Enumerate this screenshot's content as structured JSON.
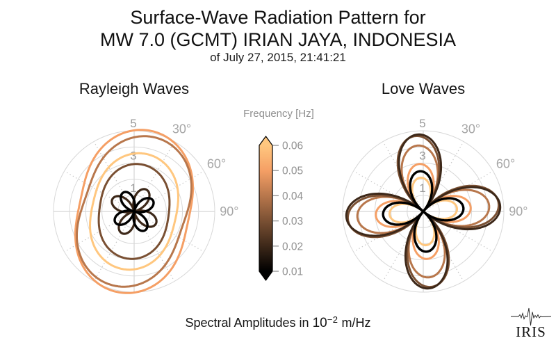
{
  "header": {
    "title_line1": "Surface-Wave Radiation Pattern for",
    "title_line2": "MW 7.0 (GCMT) IRIAN JAYA, INDONESIA",
    "subtitle": "of July 27, 2015, 21:41:21"
  },
  "colorbar": {
    "label": "Frequency [Hz]",
    "ticks": [
      "0.06",
      "0.05",
      "0.04",
      "0.03",
      "0.02",
      "0.01"
    ],
    "gradient_top_to_bottom": [
      "#FFC77F",
      "#F59F65",
      "#B8774C",
      "#7A5033",
      "#3D2819",
      "#000000"
    ],
    "outline_color": "#000000",
    "tick_color": "#8f8f8f",
    "tick_label_color": "#919191",
    "extend_arrows": "both"
  },
  "footer": {
    "caption_prefix": "Spectral Amplitudes in",
    "caption_base": "10",
    "caption_exponent": "−2",
    "caption_suffix": "m/Hz",
    "logo_text": "IRIS"
  },
  "grid_style": {
    "circle_color": "#d8d8d8",
    "axis_cross_color": "#cbcbcb",
    "dotted_spoke_color": "#c6c6c6",
    "r_label_color": "#9a9a9a",
    "theta_label_color": "#a6a6a6"
  },
  "chart_data": [
    {
      "type": "line",
      "projection": "polar",
      "title": "Rayleigh Waves",
      "units": "10^-2 m/Hz",
      "r_axis": {
        "ticks": [
          1,
          3,
          5
        ],
        "gridlines": [
          1,
          2,
          3,
          4,
          5
        ],
        "max": 5
      },
      "theta_axis": {
        "labels": [
          {
            "text": "30°",
            "deg": 30
          },
          {
            "text": "60°",
            "deg": 60
          },
          {
            "text": "90°",
            "deg": 90
          }
        ],
        "solid_spokes_deg": [
          0,
          90,
          180,
          270
        ],
        "dotted_spokes_deg": [
          30,
          60,
          120,
          150,
          210,
          240,
          300,
          330
        ]
      },
      "series": [
        {
          "freq_hz": 0.06,
          "color": "#FFC77F",
          "shape": "peanut",
          "mean": 3.12,
          "var": 0.52,
          "tilt_deg": 13,
          "amp_max": 3.64,
          "amp_min": 2.6,
          "stroke_width": 3
        },
        {
          "freq_hz": 0.05,
          "color": "#F59F65",
          "shape": "peanut",
          "mean": 4.25,
          "var": 0.85,
          "tilt_deg": 12,
          "amp_max": 5.1,
          "amp_min": 3.4,
          "stroke_width": 3
        },
        {
          "freq_hz": 0.04,
          "color": "#B8774C",
          "shape": "peanut",
          "mean": 3.95,
          "var": 0.82,
          "tilt_deg": 19,
          "amp_max": 4.77,
          "amp_min": 3.13,
          "stroke_width": 3
        },
        {
          "freq_hz": 0.03,
          "color": "#7A5033",
          "shape": "peanut",
          "mean": 2.55,
          "var": 0.4,
          "tilt_deg": 8,
          "amp_max": 2.95,
          "amp_min": 2.15,
          "stroke_width": 3
        },
        {
          "freq_hz": 0.02,
          "color": "#3D2819",
          "shape": "clover",
          "amp_max": 1.55,
          "amp_min": 0,
          "tilt_deg": 30,
          "stroke_width": 3.2
        },
        {
          "freq_hz": 0.01,
          "color": "#000000",
          "shape": "clover",
          "amp_max": 1.35,
          "amp_min": 0,
          "tilt_deg": -30,
          "stroke_width": 3.4
        }
      ]
    },
    {
      "type": "line",
      "projection": "polar",
      "title": "Love Waves",
      "units": "10^-2 m/Hz",
      "r_axis": {
        "ticks": [
          1,
          3,
          5
        ],
        "gridlines": [
          1,
          2,
          3,
          4,
          5
        ],
        "max": 5
      },
      "theta_axis": {
        "labels": [
          {
            "text": "30°",
            "deg": 30
          },
          {
            "text": "60°",
            "deg": 60
          },
          {
            "text": "90°",
            "deg": 90
          }
        ],
        "solid_spokes_deg": [
          0,
          90,
          180,
          270
        ],
        "dotted_spokes_deg": [
          30,
          60,
          120,
          150,
          210,
          240,
          300,
          330
        ]
      },
      "series": [
        {
          "freq_hz": 0.06,
          "color": "#FFC77F",
          "shape": "clover",
          "amp_max": 2.1,
          "amp_min": 0,
          "tilt_deg": -5,
          "stroke_width": 3
        },
        {
          "freq_hz": 0.05,
          "color": "#F59F65",
          "shape": "clover",
          "amp_max": 2.95,
          "amp_min": 0,
          "tilt_deg": -5,
          "stroke_width": 3
        },
        {
          "freq_hz": 0.04,
          "color": "#B8774C",
          "shape": "clover",
          "amp_max": 4.1,
          "amp_min": 0,
          "tilt_deg": -5,
          "stroke_width": 3
        },
        {
          "freq_hz": 0.03,
          "color": "#7A5033",
          "shape": "clover",
          "amp_max": 4.7,
          "amp_min": 0,
          "tilt_deg": -6,
          "stroke_width": 3
        },
        {
          "freq_hz": 0.02,
          "color": "#3D2819",
          "shape": "clover",
          "amp_max": 4.78,
          "amp_min": 0,
          "tilt_deg": -4,
          "stroke_width": 3
        },
        {
          "freq_hz": 0.01,
          "color": "#000000",
          "shape": "clover",
          "amp_max": 2.5,
          "amp_min": 0,
          "tilt_deg": -5,
          "stroke_width": 3.4
        }
      ]
    }
  ]
}
